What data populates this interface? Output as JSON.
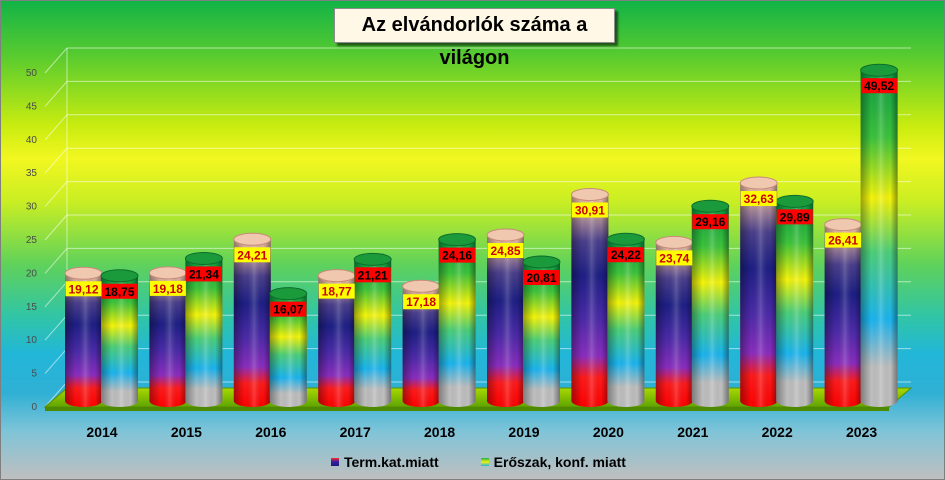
{
  "chart_data": {
    "type": "bar",
    "title": "Az elvándorlók száma a világon",
    "categories": [
      "2014",
      "2015",
      "2016",
      "2017",
      "2018",
      "2019",
      "2020",
      "2021",
      "2022",
      "2023"
    ],
    "series": [
      {
        "name": "Term.kat.miatt",
        "values": [
          19.12,
          19.18,
          24.21,
          18.77,
          17.18,
          24.85,
          30.91,
          23.74,
          32.63,
          26.41
        ],
        "labels": [
          "19,12",
          "19,18",
          "24,21",
          "18,77",
          "17,18",
          "24,85",
          "30,91",
          "23,74",
          "32,63",
          "26,41"
        ]
      },
      {
        "name": "Erőszak, konf. miatt",
        "values": [
          18.75,
          21.34,
          16.07,
          21.21,
          24.16,
          20.81,
          24.22,
          29.16,
          29.89,
          49.52
        ],
        "labels": [
          "18,75",
          "21,34",
          "16,07",
          "21,21",
          "24,16",
          "20,81",
          "24,22",
          "29,16",
          "29,89",
          "49,52"
        ]
      }
    ],
    "y_ticks": [
      "0",
      "5",
      "10",
      "15",
      "20",
      "25",
      "30",
      "35",
      "40",
      "45",
      "50"
    ],
    "ylim": [
      0,
      50
    ],
    "grid": true,
    "legend": "bottom",
    "colors": {
      "series_0_label_bg": "#ffff00",
      "series_1_label_bg": "#ff0000",
      "floor": "#7fbf00"
    }
  }
}
